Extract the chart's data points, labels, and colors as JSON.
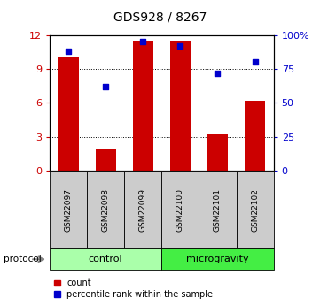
{
  "title": "GDS928 / 8267",
  "samples": [
    "GSM22097",
    "GSM22098",
    "GSM22099",
    "GSM22100",
    "GSM22101",
    "GSM22102"
  ],
  "counts": [
    10.0,
    2.0,
    11.5,
    11.5,
    3.2,
    6.2
  ],
  "percentiles": [
    88,
    62,
    95,
    92,
    72,
    80
  ],
  "bar_color": "#cc0000",
  "dot_color": "#0000cc",
  "left_ylim": [
    0,
    12
  ],
  "right_ylim": [
    0,
    100
  ],
  "left_yticks": [
    0,
    3,
    6,
    9,
    12
  ],
  "right_yticks": [
    0,
    25,
    50,
    75,
    100
  ],
  "right_yticklabels": [
    "0",
    "25",
    "50",
    "75",
    "100%"
  ],
  "left_tick_color": "#cc0000",
  "right_tick_color": "#0000cc",
  "groups": [
    {
      "label": "control",
      "start": 0,
      "end": 3,
      "color": "#aaffaa"
    },
    {
      "label": "microgravity",
      "start": 3,
      "end": 6,
      "color": "#44ee44"
    }
  ],
  "protocol_label": "protocol",
  "legend_count": "count",
  "legend_percentile": "percentile rank within the sample",
  "sample_box_color": "#cccccc"
}
